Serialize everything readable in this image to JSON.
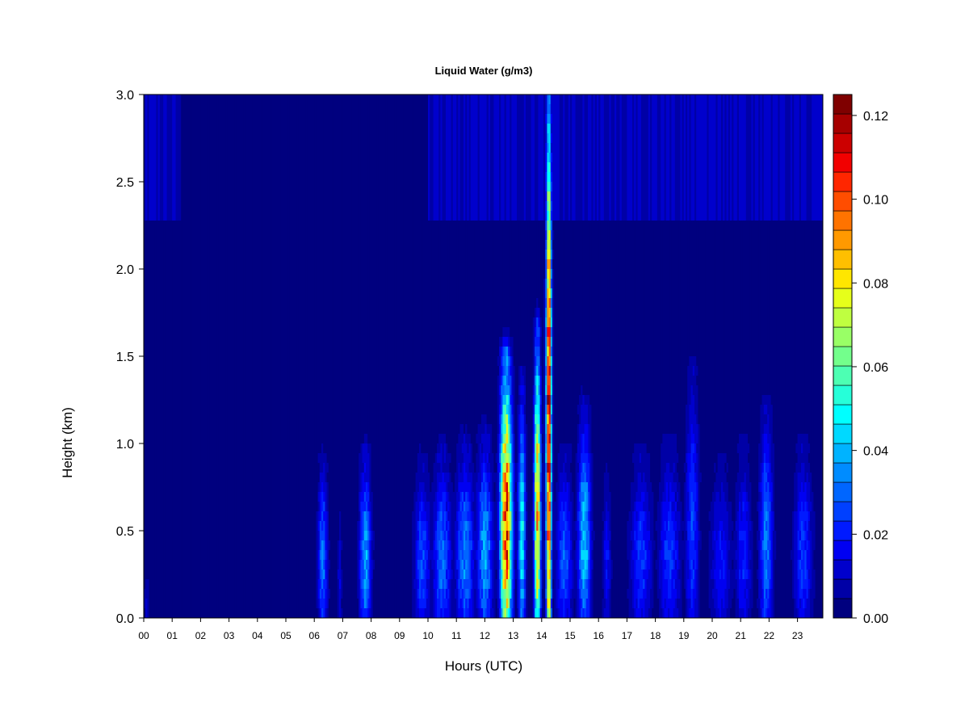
{
  "chart_data": {
    "type": "heatmap",
    "title": "Liquid Water (g/m3)",
    "xlabel": "Hours (UTC)",
    "ylabel": "Height (km)",
    "xlim": [
      0,
      24
    ],
    "ylim": [
      0.0,
      3.0
    ],
    "x_ticks": [
      "00",
      "01",
      "02",
      "03",
      "04",
      "05",
      "06",
      "07",
      "08",
      "09",
      "10",
      "11",
      "12",
      "13",
      "14",
      "15",
      "16",
      "17",
      "18",
      "19",
      "20",
      "21",
      "22",
      "23"
    ],
    "y_ticks": [
      "0.0",
      "0.5",
      "1.0",
      "1.5",
      "2.0",
      "2.5",
      "3.0"
    ],
    "colorbar": {
      "range": [
        0.0,
        0.125
      ],
      "ticks": [
        "0.00",
        "0.02",
        "0.04",
        "0.06",
        "0.08",
        "0.10",
        "0.12"
      ],
      "colors": [
        "#00007f",
        "#0000a6",
        "#0000cc",
        "#0000f2",
        "#001aff",
        "#0040ff",
        "#0066ff",
        "#008cff",
        "#00b3ff",
        "#00d9ff",
        "#00ffff",
        "#26ffd9",
        "#4dffb3",
        "#73ff8c",
        "#99ff66",
        "#bfff40",
        "#e6ff1a",
        "#ffe600",
        "#ffbf00",
        "#ff9900",
        "#ff7300",
        "#ff4d00",
        "#ff2600",
        "#f20000",
        "#cc0000",
        "#a60000",
        "#7f0000"
      ]
    },
    "background_level": 0.003,
    "upper_layer": {
      "height_range": [
        2.3,
        3.0
      ],
      "active_hours": [
        [
          0,
          1.3
        ],
        [
          10,
          24
        ]
      ],
      "level": 0.012
    },
    "features": [
      {
        "hour": 0.1,
        "width": 0.1,
        "top": 0.25,
        "peak": 0.012
      },
      {
        "hour": 6.3,
        "width": 0.18,
        "top": 0.85,
        "peak": 0.035
      },
      {
        "hour": 6.9,
        "width": 0.08,
        "top": 0.6,
        "peak": 0.015
      },
      {
        "hour": 7.8,
        "width": 0.22,
        "top": 0.9,
        "peak": 0.04
      },
      {
        "hour": 9.8,
        "width": 0.3,
        "top": 0.85,
        "peak": 0.028
      },
      {
        "hour": 10.5,
        "width": 0.35,
        "top": 0.9,
        "peak": 0.032
      },
      {
        "hour": 11.3,
        "width": 0.35,
        "top": 0.95,
        "peak": 0.035
      },
      {
        "hour": 12.0,
        "width": 0.3,
        "top": 1.0,
        "peak": 0.04
      },
      {
        "hour": 12.75,
        "width": 0.22,
        "top": 1.45,
        "peak": 0.11
      },
      {
        "hour": 13.3,
        "width": 0.15,
        "top": 1.3,
        "peak": 0.05
      },
      {
        "hour": 13.85,
        "width": 0.12,
        "top": 1.6,
        "peak": 0.095
      },
      {
        "hour": 14.25,
        "width": 0.1,
        "top": 3.0,
        "peak": 0.12
      },
      {
        "hour": 14.8,
        "width": 0.3,
        "top": 0.9,
        "peak": 0.03
      },
      {
        "hour": 15.5,
        "width": 0.25,
        "top": 1.15,
        "peak": 0.045
      },
      {
        "hour": 16.3,
        "width": 0.15,
        "top": 0.8,
        "peak": 0.02
      },
      {
        "hour": 17.5,
        "width": 0.4,
        "top": 0.9,
        "peak": 0.025
      },
      {
        "hour": 18.5,
        "width": 0.4,
        "top": 0.95,
        "peak": 0.025
      },
      {
        "hour": 19.3,
        "width": 0.25,
        "top": 1.4,
        "peak": 0.025
      },
      {
        "hour": 20.3,
        "width": 0.4,
        "top": 0.85,
        "peak": 0.02
      },
      {
        "hour": 21.1,
        "width": 0.3,
        "top": 0.95,
        "peak": 0.022
      },
      {
        "hour": 21.9,
        "width": 0.25,
        "top": 1.15,
        "peak": 0.035
      },
      {
        "hour": 23.2,
        "width": 0.35,
        "top": 0.95,
        "peak": 0.025
      }
    ]
  }
}
